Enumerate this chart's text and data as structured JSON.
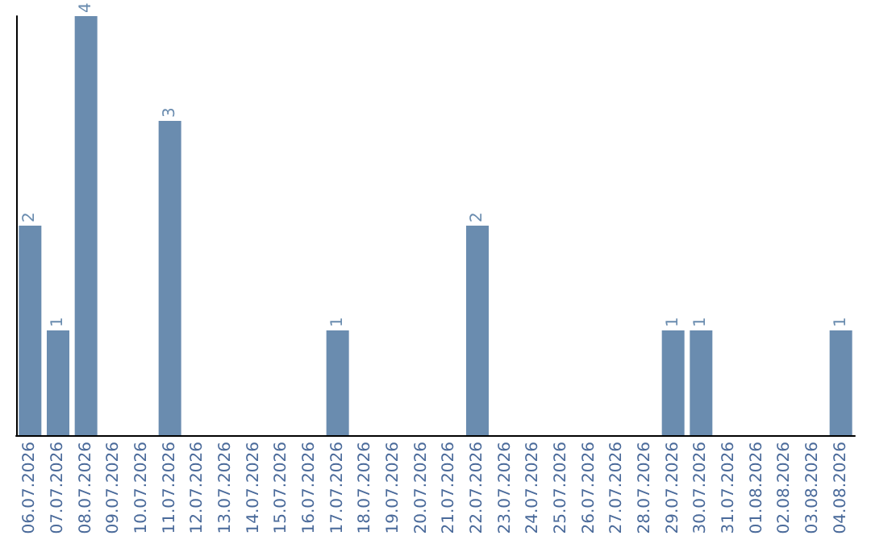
{
  "chart_data": {
    "type": "bar",
    "categories": [
      "06.07.2026",
      "07.07.2026",
      "08.07.2026",
      "09.07.2026",
      "10.07.2026",
      "11.07.2026",
      "12.07.2026",
      "13.07.2026",
      "14.07.2026",
      "15.07.2026",
      "16.07.2026",
      "17.07.2026",
      "18.07.2026",
      "19.07.2026",
      "20.07.2026",
      "21.07.2026",
      "22.07.2026",
      "23.07.2026",
      "24.07.2026",
      "25.07.2026",
      "26.07.2026",
      "27.07.2026",
      "28.07.2026",
      "29.07.2026",
      "30.07.2026",
      "31.07.2026",
      "01.08.2026",
      "02.08.2026",
      "03.08.2026",
      "04.08.2026"
    ],
    "values": [
      2,
      1,
      4,
      0,
      0,
      3,
      0,
      0,
      0,
      0,
      0,
      1,
      0,
      0,
      0,
      0,
      2,
      0,
      0,
      0,
      0,
      0,
      0,
      1,
      1,
      0,
      0,
      0,
      0,
      1
    ],
    "value_labels": [
      "2",
      "1",
      "4",
      null,
      null,
      "3",
      null,
      null,
      null,
      null,
      null,
      "1",
      null,
      null,
      null,
      null,
      "2",
      null,
      null,
      null,
      null,
      null,
      null,
      "1",
      "1",
      null,
      null,
      null,
      null,
      "1"
    ],
    "color": "#6a8caf",
    "grid": false,
    "tick_labels": "x"
  }
}
